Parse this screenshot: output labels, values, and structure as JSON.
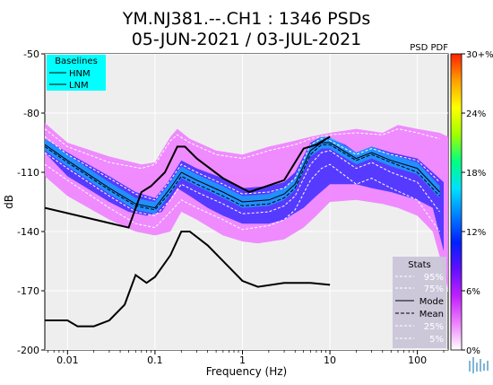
{
  "chart_data": {
    "type": "heatmap",
    "title_line1": "YM.NJ381.--.CH1 : 1346 PSDs",
    "title_line2": "05-JUN-2021 / 03-JUL-2021",
    "xlabel": "Frequency (Hz)",
    "ylabel": "dB",
    "x_scale": "log",
    "xlim": [
      0.0055,
      225
    ],
    "ylim": [
      -200,
      -50
    ],
    "x_ticks": [
      {
        "value": 0.01,
        "label": "0.01"
      },
      {
        "value": 0.1,
        "label": "0.1"
      },
      {
        "value": 1,
        "label": "1"
      },
      {
        "value": 10,
        "label": "10"
      },
      {
        "value": 100,
        "label": "100"
      }
    ],
    "y_ticks": [
      {
        "value": -50,
        "label": "-50"
      },
      {
        "value": -80,
        "label": "-80"
      },
      {
        "value": -110,
        "label": "-110"
      },
      {
        "value": -140,
        "label": "-140"
      },
      {
        "value": -170,
        "label": "-170"
      },
      {
        "value": -200,
        "label": "-200"
      }
    ],
    "panel_label": "PSD PDF",
    "colorbar": {
      "ticks": [
        {
          "value": 0,
          "label": "0%"
        },
        {
          "value": 6,
          "label": "6%"
        },
        {
          "value": 12,
          "label": "12%"
        },
        {
          "value": 18,
          "label": "18%"
        },
        {
          "value": 24,
          "label": "24%"
        },
        {
          "value": 30,
          "label": "30+%"
        }
      ],
      "range": [
        0,
        30
      ],
      "colors": [
        "#ffffff",
        "#ee80ff",
        "#c020ff",
        "#6010ff",
        "#0020ff",
        "#0080ff",
        "#00e0ff",
        "#00ff80",
        "#a0ff00",
        "#ffff00",
        "#ffa000",
        "#ff2000"
      ]
    },
    "baselines": {
      "title": "Baselines",
      "labels": [
        "HNM",
        "LNM"
      ],
      "box_color": "#00ffff",
      "hnm": [
        [
          0.0055,
          -128
        ],
        [
          0.05,
          -138
        ],
        [
          0.07,
          -120
        ],
        [
          0.09,
          -117
        ],
        [
          0.13,
          -110
        ],
        [
          0.18,
          -97
        ],
        [
          0.22,
          -97
        ],
        [
          0.3,
          -103
        ],
        [
          0.6,
          -113
        ],
        [
          1.2,
          -120
        ],
        [
          3,
          -114
        ],
        [
          5,
          -98
        ],
        [
          7,
          -96
        ],
        [
          10,
          -92
        ]
      ],
      "lnm": [
        [
          0.0055,
          -185
        ],
        [
          0.01,
          -185
        ],
        [
          0.013,
          -188
        ],
        [
          0.02,
          -188
        ],
        [
          0.03,
          -185
        ],
        [
          0.045,
          -177
        ],
        [
          0.06,
          -162
        ],
        [
          0.08,
          -166
        ],
        [
          0.1,
          -163
        ],
        [
          0.15,
          -152
        ],
        [
          0.2,
          -140
        ],
        [
          0.25,
          -140
        ],
        [
          0.4,
          -147
        ],
        [
          0.7,
          -158
        ],
        [
          1,
          -165
        ],
        [
          1.5,
          -168
        ],
        [
          3,
          -166
        ],
        [
          6,
          -166
        ],
        [
          10,
          -167
        ]
      ]
    },
    "pdf_band": {
      "color": "#ee80ff",
      "upper": [
        [
          0.0055,
          -85
        ],
        [
          0.01,
          -95
        ],
        [
          0.03,
          -102
        ],
        [
          0.07,
          -106
        ],
        [
          0.1,
          -105
        ],
        [
          0.15,
          -92
        ],
        [
          0.18,
          -88
        ],
        [
          0.25,
          -93
        ],
        [
          0.5,
          -99
        ],
        [
          1,
          -101
        ],
        [
          2,
          -97
        ],
        [
          4,
          -94
        ],
        [
          6,
          -92
        ],
        [
          10,
          -90
        ],
        [
          20,
          -88
        ],
        [
          40,
          -90
        ],
        [
          60,
          -86
        ],
        [
          100,
          -88
        ],
        [
          180,
          -90
        ],
        [
          225,
          -92
        ]
      ],
      "lower": [
        [
          225,
          -170
        ],
        [
          200,
          -160
        ],
        [
          150,
          -140
        ],
        [
          100,
          -132
        ],
        [
          60,
          -128
        ],
        [
          40,
          -126
        ],
        [
          20,
          -124
        ],
        [
          10,
          -125
        ],
        [
          7,
          -132
        ],
        [
          5,
          -138
        ],
        [
          3,
          -144
        ],
        [
          1.5,
          -146
        ],
        [
          1,
          -145
        ],
        [
          0.6,
          -142
        ],
        [
          0.3,
          -134
        ],
        [
          0.2,
          -130
        ],
        [
          0.15,
          -140
        ],
        [
          0.1,
          -142
        ],
        [
          0.06,
          -140
        ],
        [
          0.03,
          -134
        ],
        [
          0.01,
          -122
        ],
        [
          0.0055,
          -112
        ]
      ]
    },
    "pdf_dense": {
      "color": "#3b2bff",
      "upper": [
        [
          0.0055,
          -93
        ],
        [
          0.01,
          -100
        ],
        [
          0.03,
          -112
        ],
        [
          0.06,
          -120
        ],
        [
          0.1,
          -123
        ],
        [
          0.14,
          -115
        ],
        [
          0.2,
          -104
        ],
        [
          0.3,
          -108
        ],
        [
          0.6,
          -113
        ],
        [
          1,
          -118
        ],
        [
          2,
          -117
        ],
        [
          3,
          -115
        ],
        [
          4,
          -110
        ],
        [
          6,
          -95
        ],
        [
          8,
          -92
        ],
        [
          10,
          -93
        ],
        [
          15,
          -96
        ],
        [
          20,
          -100
        ],
        [
          30,
          -97
        ],
        [
          50,
          -100
        ],
        [
          100,
          -103
        ],
        [
          150,
          -110
        ],
        [
          200,
          -115
        ]
      ],
      "lower": [
        [
          200,
          -150
        ],
        [
          150,
          -128
        ],
        [
          100,
          -124
        ],
        [
          50,
          -120
        ],
        [
          30,
          -118
        ],
        [
          20,
          -116
        ],
        [
          10,
          -116
        ],
        [
          7,
          -122
        ],
        [
          5,
          -128
        ],
        [
          3,
          -134
        ],
        [
          2,
          -136
        ],
        [
          1,
          -136
        ],
        [
          0.6,
          -132
        ],
        [
          0.4,
          -128
        ],
        [
          0.25,
          -122
        ],
        [
          0.18,
          -118
        ],
        [
          0.12,
          -130
        ],
        [
          0.08,
          -132
        ],
        [
          0.05,
          -130
        ],
        [
          0.03,
          -125
        ],
        [
          0.01,
          -112
        ],
        [
          0.0055,
          -100
        ]
      ]
    },
    "stats": {
      "title": "Stats",
      "labels": [
        "95%",
        "75%",
        "Mode",
        "Mean",
        "25%",
        "5%"
      ],
      "p95": [
        [
          0.0055,
          -88
        ],
        [
          0.01,
          -97
        ],
        [
          0.03,
          -105
        ],
        [
          0.07,
          -108
        ],
        [
          0.1,
          -106
        ],
        [
          0.15,
          -94
        ],
        [
          0.18,
          -91
        ],
        [
          0.25,
          -95
        ],
        [
          0.5,
          -101
        ],
        [
          1,
          -103
        ],
        [
          2,
          -99
        ],
        [
          4,
          -96
        ],
        [
          6,
          -93
        ],
        [
          10,
          -91
        ],
        [
          20,
          -90
        ],
        [
          40,
          -91
        ],
        [
          60,
          -88
        ],
        [
          100,
          -90
        ],
        [
          180,
          -93
        ]
      ],
      "p75": [
        [
          0.0055,
          -92
        ],
        [
          0.01,
          -101
        ],
        [
          0.03,
          -113
        ],
        [
          0.06,
          -121
        ],
        [
          0.1,
          -124
        ],
        [
          0.15,
          -114
        ],
        [
          0.2,
          -106
        ],
        [
          0.3,
          -110
        ],
        [
          0.6,
          -116
        ],
        [
          1,
          -121
        ],
        [
          2,
          -120
        ],
        [
          3,
          -118
        ],
        [
          4,
          -113
        ],
        [
          6,
          -96
        ],
        [
          8,
          -93
        ],
        [
          10,
          -94
        ],
        [
          20,
          -101
        ],
        [
          30,
          -98
        ],
        [
          50,
          -101
        ],
        [
          100,
          -104
        ],
        [
          180,
          -115
        ]
      ],
      "mode": [
        [
          0.0055,
          -96
        ],
        [
          0.01,
          -104
        ],
        [
          0.03,
          -118
        ],
        [
          0.06,
          -126
        ],
        [
          0.1,
          -128
        ],
        [
          0.15,
          -118
        ],
        [
          0.2,
          -110
        ],
        [
          0.3,
          -114
        ],
        [
          0.6,
          -120
        ],
        [
          1,
          -125
        ],
        [
          2,
          -124
        ],
        [
          3,
          -121
        ],
        [
          4,
          -116
        ],
        [
          6,
          -99
        ],
        [
          8,
          -95
        ],
        [
          10,
          -95
        ],
        [
          20,
          -103
        ],
        [
          30,
          -100
        ],
        [
          50,
          -104
        ],
        [
          100,
          -108
        ],
        [
          180,
          -120
        ]
      ],
      "mean": [
        [
          0.0055,
          -97
        ],
        [
          0.01,
          -105
        ],
        [
          0.03,
          -119
        ],
        [
          0.06,
          -127
        ],
        [
          0.1,
          -129
        ],
        [
          0.15,
          -120
        ],
        [
          0.2,
          -112
        ],
        [
          0.3,
          -116
        ],
        [
          0.6,
          -122
        ],
        [
          1,
          -127
        ],
        [
          2,
          -126
        ],
        [
          3,
          -123
        ],
        [
          4,
          -118
        ],
        [
          6,
          -101
        ],
        [
          8,
          -96
        ],
        [
          10,
          -96
        ],
        [
          20,
          -104
        ],
        [
          30,
          -101
        ],
        [
          50,
          -105
        ],
        [
          100,
          -110
        ],
        [
          180,
          -122
        ]
      ],
      "p25": [
        [
          0.0055,
          -100
        ],
        [
          0.01,
          -108
        ],
        [
          0.03,
          -122
        ],
        [
          0.06,
          -130
        ],
        [
          0.1,
          -132
        ],
        [
          0.15,
          -124
        ],
        [
          0.2,
          -116
        ],
        [
          0.3,
          -120
        ],
        [
          0.6,
          -126
        ],
        [
          1,
          -131
        ],
        [
          2,
          -130
        ],
        [
          3,
          -127
        ],
        [
          4,
          -122
        ],
        [
          6,
          -106
        ],
        [
          8,
          -100
        ],
        [
          10,
          -99
        ],
        [
          20,
          -108
        ],
        [
          30,
          -105
        ],
        [
          50,
          -110
        ],
        [
          100,
          -115
        ],
        [
          180,
          -130
        ]
      ],
      "p5": [
        [
          0.0055,
          -106
        ],
        [
          0.01,
          -114
        ],
        [
          0.03,
          -128
        ],
        [
          0.06,
          -136
        ],
        [
          0.1,
          -138
        ],
        [
          0.15,
          -130
        ],
        [
          0.2,
          -124
        ],
        [
          0.3,
          -128
        ],
        [
          0.6,
          -134
        ],
        [
          1,
          -139
        ],
        [
          2,
          -137
        ],
        [
          3,
          -134
        ],
        [
          4,
          -129
        ],
        [
          6,
          -114
        ],
        [
          8,
          -108
        ],
        [
          10,
          -106
        ],
        [
          20,
          -116
        ],
        [
          30,
          -113
        ],
        [
          50,
          -118
        ],
        [
          100,
          -124
        ],
        [
          180,
          -140
        ]
      ]
    }
  }
}
